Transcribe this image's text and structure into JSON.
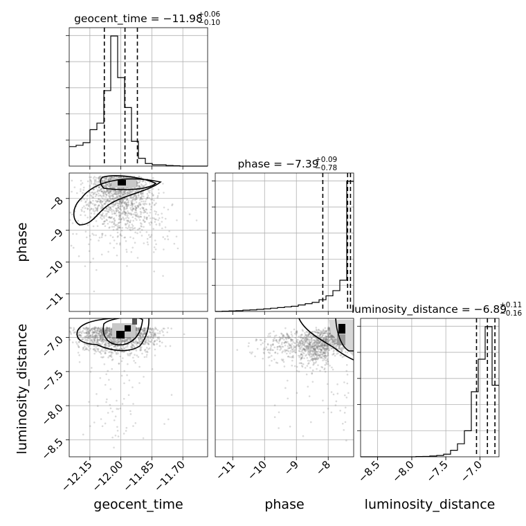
{
  "chart_data": {
    "type": "scatter",
    "subtype": "corner",
    "parameters": [
      {
        "name": "geocent_time",
        "title": {
          "prefix": "geocent_time = ",
          "median": "−11.98",
          "plus": "+0.06",
          "minus": "−0.10"
        },
        "median": -11.98,
        "lower_q": -12.08,
        "upper_q": -11.92,
        "range": [
          -12.25,
          -11.58
        ],
        "ticks": [
          -12.15,
          -12.0,
          -11.85,
          -11.7
        ],
        "tick_labels": [
          "−12.15",
          "−12.00",
          "−11.85",
          "−11.70"
        ],
        "axis_label": "geocent_time",
        "hist_edges": [
          -12.25,
          -12.2165,
          -12.183,
          -12.1495,
          -12.116,
          -12.0825,
          -12.049,
          -12.0155,
          -11.982,
          -11.9485,
          -11.915,
          -11.8815,
          -11.848,
          -11.8145,
          -11.781,
          -11.7475,
          -11.714,
          -11.6805,
          -11.647,
          -11.6135,
          -11.58
        ],
        "hist_counts": [
          0.15,
          0.16,
          0.18,
          0.28,
          0.33,
          0.58,
          1.0,
          0.68,
          0.45,
          0.19,
          0.06,
          0.02,
          0.01,
          0.01,
          0.005,
          0.003,
          0.0,
          0.0,
          0.0,
          0.0
        ]
      },
      {
        "name": "phase",
        "title": {
          "prefix": "phase = ",
          "median": "−7.39",
          "plus": "+0.09",
          "minus": "−0.78"
        },
        "median": -7.39,
        "lower_q": -8.17,
        "upper_q": -7.3,
        "range": [
          -11.55,
          -7.2
        ],
        "ticks": [
          -11,
          -10,
          -9,
          -8
        ],
        "tick_labels": [
          "−11",
          "−10",
          "−9",
          "−8"
        ],
        "axis_label": "phase",
        "hist_edges": [
          -11.55,
          -11.3325,
          -11.115,
          -10.8975,
          -10.68,
          -10.4625,
          -10.245,
          -10.0275,
          -9.81,
          -9.5925,
          -9.375,
          -9.1575,
          -8.94,
          -8.7225,
          -8.505,
          -8.2875,
          -8.07,
          -7.8525,
          -7.635,
          -7.4175,
          -7.2
        ],
        "hist_counts": [
          0.0,
          0.002,
          0.004,
          0.006,
          0.01,
          0.012,
          0.016,
          0.02,
          0.025,
          0.03,
          0.035,
          0.04,
          0.05,
          0.06,
          0.07,
          0.09,
          0.12,
          0.16,
          0.24,
          1.0
        ]
      },
      {
        "name": "luminosity_distance",
        "title": {
          "prefix": "luminosity_distance = ",
          "median": "−6.89",
          "plus": "+0.11",
          "minus": "−0.16"
        },
        "median": -6.89,
        "lower_q": -7.05,
        "upper_q": -6.78,
        "range": [
          -8.75,
          -6.72
        ],
        "ticks": [
          -8.5,
          -8.0,
          -7.5,
          -7.0
        ],
        "tick_labels": [
          "−8.5",
          "−8.0",
          "−7.5",
          "−7.0"
        ],
        "axis_label": "luminosity_distance",
        "hist_edges": [
          -8.75,
          -8.6485,
          -8.547,
          -8.4455,
          -8.344,
          -8.2425,
          -8.141,
          -8.0395,
          -7.938,
          -7.8365,
          -7.735,
          -7.6335,
          -7.532,
          -7.4305,
          -7.329,
          -7.2275,
          -7.126,
          -7.0245,
          -6.923,
          -6.8215,
          -6.72
        ],
        "hist_counts": [
          0.0,
          0.0,
          0.0,
          0.0,
          0.0,
          0.0,
          0.0,
          0.0,
          0.002,
          0.003,
          0.006,
          0.01,
          0.02,
          0.05,
          0.1,
          0.2,
          0.5,
          0.75,
          1.0,
          0.55
        ]
      }
    ],
    "pairs": [
      {
        "x": "geocent_time",
        "y": "phase",
        "mode": [
          -11.98,
          -7.35
        ]
      },
      {
        "x": "geocent_time",
        "y": "luminosity_distance",
        "mode": [
          -11.98,
          -6.96
        ]
      },
      {
        "x": "phase",
        "y": "luminosity_distance",
        "mode": [
          -7.35,
          -6.95
        ]
      }
    ],
    "grid": true,
    "legend": "none"
  }
}
